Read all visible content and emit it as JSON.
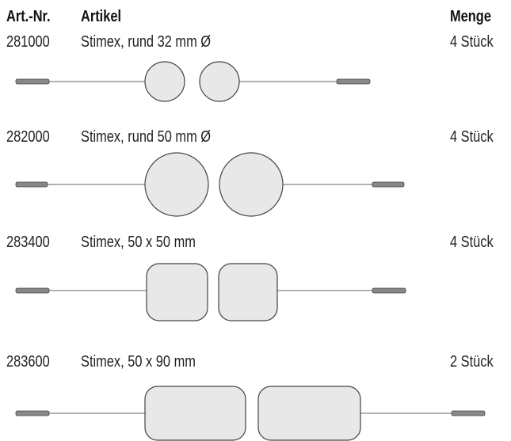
{
  "table": {
    "header": [
      "Art.-Nr.",
      "Artikel",
      "Menge"
    ],
    "rows": [
      [
        "281000",
        "Stimex, rund 32 mm Ø",
        "4 Stück"
      ],
      [
        "282000",
        "Stimex, rund 50 mm Ø",
        "4 Stück"
      ],
      [
        "283400",
        "Stimex, 50 x 50 mm",
        "4 Stück"
      ],
      [
        "283600",
        "Stimex, 50 x 90 mm",
        "2 Stück"
      ]
    ]
  }
}
